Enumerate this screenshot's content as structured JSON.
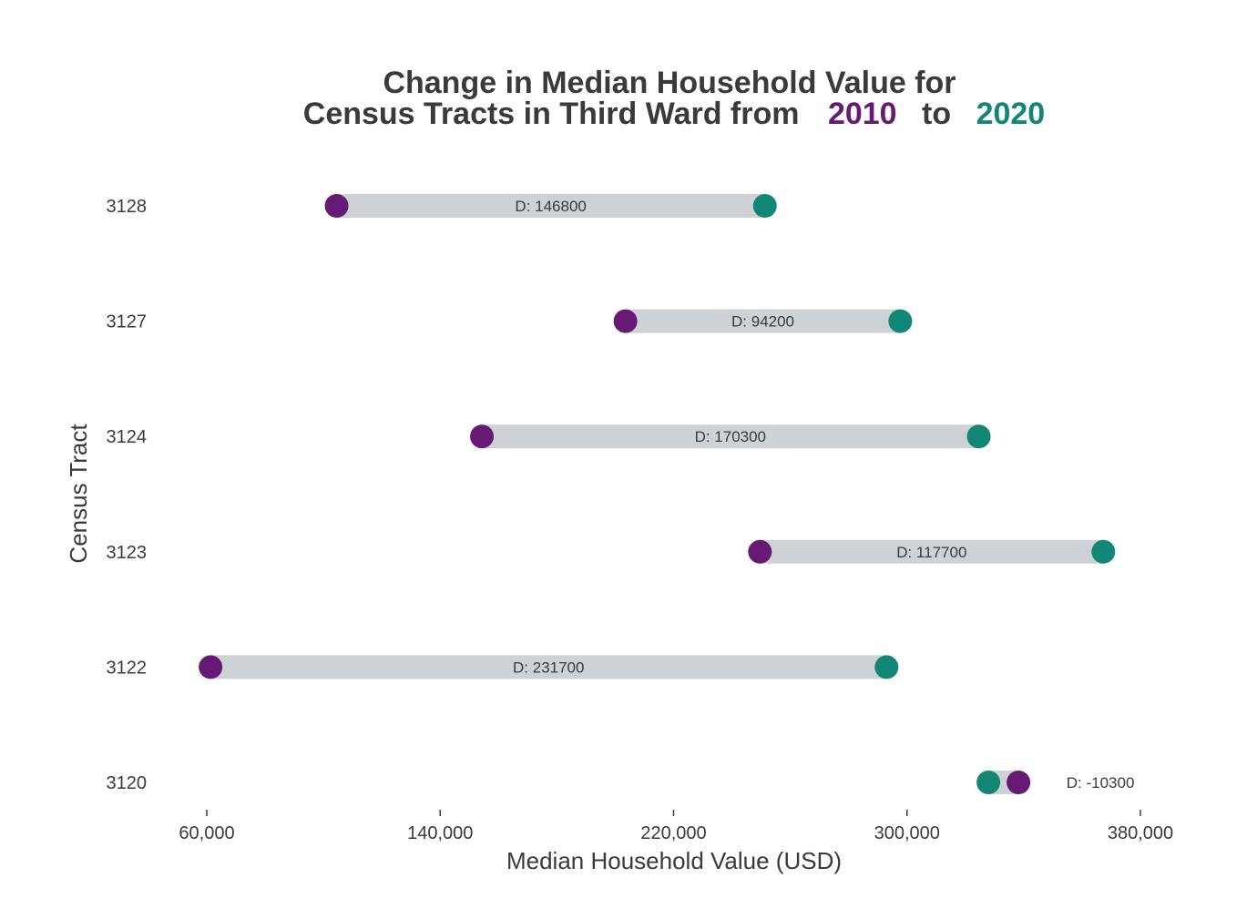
{
  "chart_data": {
    "type": "dumbbell",
    "title": {
      "line1": "Change in Median Household Value for",
      "line2_prefix": "Census Tracts in Third Ward from",
      "line2_year_start": "2010",
      "line2_connector": "to",
      "line2_year_end": "2020"
    },
    "xlabel": "Median Household Value (USD)",
    "ylabel": "Census Tract",
    "xlim": [
      48000,
      389000
    ],
    "xticks": [
      60000,
      140000,
      220000,
      300000,
      380000
    ],
    "xtick_labels": [
      "60,000",
      "140,000",
      "220,000",
      "300,000",
      "380,000"
    ],
    "grid": false,
    "colors": {
      "2010": "#661a73",
      "2020": "#138775",
      "bar": "#cdd2d6",
      "text": "#3a3a3a"
    },
    "series": [
      {
        "name": "2010",
        "color": "#661a73"
      },
      {
        "name": "2020",
        "color": "#138775"
      }
    ],
    "rows": [
      {
        "tract": "3128",
        "value_2010": 104500,
        "value_2020": 251300,
        "label": "D:  146800"
      },
      {
        "tract": "3127",
        "value_2010": 203500,
        "value_2020": 297700,
        "label": "D:  94200"
      },
      {
        "tract": "3124",
        "value_2010": 154300,
        "value_2020": 324600,
        "label": "D:  170300"
      },
      {
        "tract": "3123",
        "value_2010": 249600,
        "value_2020": 367300,
        "label": "D:  117700"
      },
      {
        "tract": "3122",
        "value_2010": 61300,
        "value_2020": 293000,
        "label": "D:  231700"
      },
      {
        "tract": "3120",
        "value_2010": 338200,
        "value_2020": 327900,
        "label": "D:  -10300"
      }
    ]
  }
}
